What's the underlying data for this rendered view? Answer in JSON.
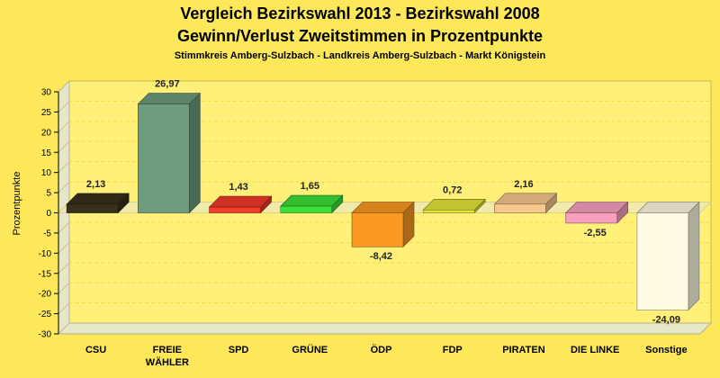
{
  "chart_data": {
    "type": "bar",
    "title": "Vergleich Bezirkswahl 2013 - Bezirkswahl 2008",
    "subtitle": "Gewinn/Verlust Zweitstimmen in Prozentpunkte",
    "caption": "Stimmkreis Amberg-Sulzbach - Landkreis Amberg-Sulzbach - Markt Königstein",
    "ylabel": "Prozentpunkte",
    "xlabel": "",
    "ylim": [
      -30,
      30
    ],
    "yticks": [
      30,
      25,
      20,
      15,
      10,
      5,
      0,
      -5,
      -10,
      -15,
      -20,
      -25,
      -30
    ],
    "categories": [
      {
        "label": "CSU",
        "lines": [
          "CSU"
        ]
      },
      {
        "label": "FREIE WÄHLER",
        "lines": [
          "FREIE",
          "WÄHLER"
        ]
      },
      {
        "label": "SPD",
        "lines": [
          "SPD"
        ]
      },
      {
        "label": "GRÜNE",
        "lines": [
          "GRÜNE"
        ]
      },
      {
        "label": "ÖDP",
        "lines": [
          "ÖDP"
        ]
      },
      {
        "label": "FDP",
        "lines": [
          "FDP"
        ]
      },
      {
        "label": "PIRATEN",
        "lines": [
          "PIRATEN"
        ]
      },
      {
        "label": "DIE LINKE",
        "lines": [
          "DIE LINKE"
        ]
      },
      {
        "label": "Sonstige",
        "lines": [
          "Sonstige"
        ]
      }
    ],
    "values": [
      2.13,
      26.97,
      1.43,
      1.65,
      -8.42,
      0.72,
      2.16,
      -2.55,
      -24.09
    ],
    "value_labels": [
      "2,13",
      "26,97",
      "1,43",
      "1,65",
      "-8,42",
      "0,72",
      "2,16",
      "-2,55",
      "-24,09"
    ],
    "colors": [
      "#37301a",
      "#6f9c7e",
      "#f23b2a",
      "#3ce038",
      "#fb9a22",
      "#e7e73a",
      "#f9c88e",
      "#f8a0c0",
      "#fffbe3"
    ],
    "grid": true,
    "legend": "none"
  }
}
